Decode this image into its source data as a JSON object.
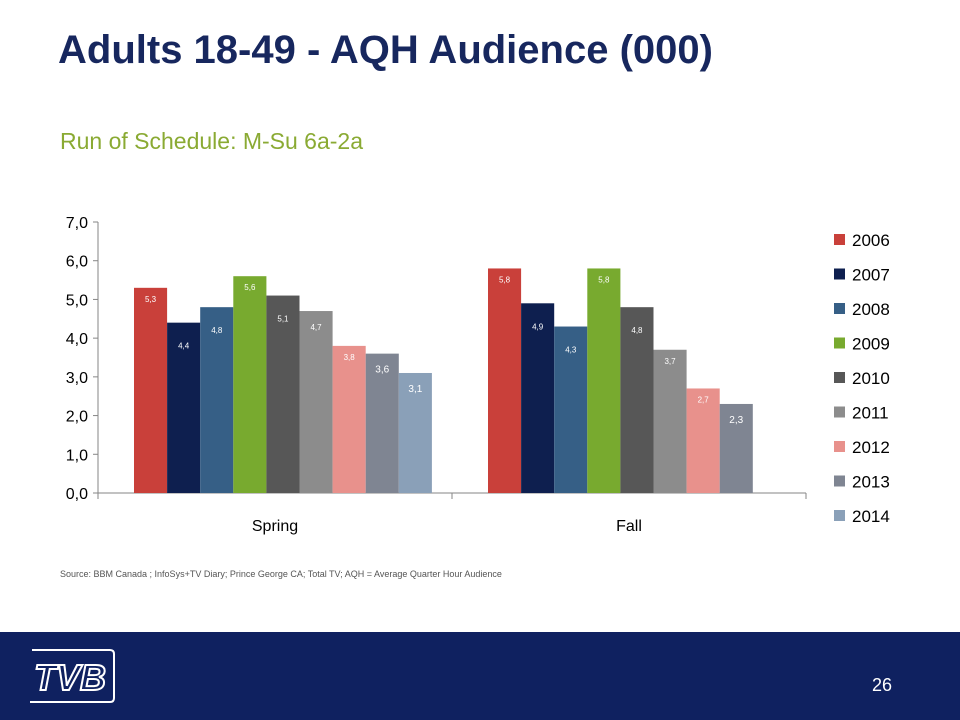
{
  "slide": {
    "title": "Adults 18-49 - AQH Audience (000)",
    "subtitle": "Run of Schedule: M-Su 6a-2a",
    "source": "Source: BBM Canada ; InfoSys+TV Diary; Prince George CA; Total TV; AQH = Average Quarter Hour Audience",
    "page_number": "26",
    "logo_text": "TVB"
  },
  "colors": {
    "title": "#17275e",
    "subtitle": "#8aaa33",
    "footer": "#0f2160"
  },
  "chart_data": {
    "type": "bar",
    "categories": [
      "Spring",
      "Fall"
    ],
    "series": [
      {
        "name": "2006",
        "color": "#c9403a",
        "values": [
          5.3,
          5.8
        ],
        "labels": [
          "5,3",
          "5,8"
        ]
      },
      {
        "name": "2007",
        "color": "#0e1f4f",
        "values": [
          4.4,
          4.9
        ],
        "labels": [
          "4,4",
          "4,9"
        ]
      },
      {
        "name": "2008",
        "color": "#365f86",
        "values": [
          4.8,
          4.3
        ],
        "labels": [
          "4,8",
          "4,3"
        ]
      },
      {
        "name": "2009",
        "color": "#78aa2f",
        "values": [
          5.6,
          5.8
        ],
        "labels": [
          "5,6",
          "5,8"
        ]
      },
      {
        "name": "2010",
        "color": "#575757",
        "values": [
          5.1,
          4.8
        ],
        "labels": [
          "5,1",
          "4,8"
        ]
      },
      {
        "name": "2011",
        "color": "#8c8c8c",
        "values": [
          4.7,
          3.7
        ],
        "labels": [
          "4,7",
          "3,7"
        ]
      },
      {
        "name": "2012",
        "color": "#e8918c",
        "values": [
          3.8,
          2.7
        ],
        "labels": [
          "3,8",
          "2,7"
        ]
      },
      {
        "name": "2013",
        "color": "#7f8592",
        "values": [
          3.6,
          2.3
        ],
        "labels": [
          "3,6",
          "2,3"
        ]
      },
      {
        "name": "2014",
        "color": "#8aa0b8",
        "values": [
          3.1,
          null
        ],
        "labels": [
          "3,1",
          ""
        ]
      }
    ],
    "ylim": [
      0,
      7
    ],
    "yticks": [
      0,
      1,
      2,
      3,
      4,
      5,
      6,
      7
    ],
    "ytick_labels": [
      "0,0",
      "1,0",
      "2,0",
      "3,0",
      "4,0",
      "5,0",
      "6,0",
      "7,0"
    ],
    "legend_position": "right",
    "grid": false
  }
}
